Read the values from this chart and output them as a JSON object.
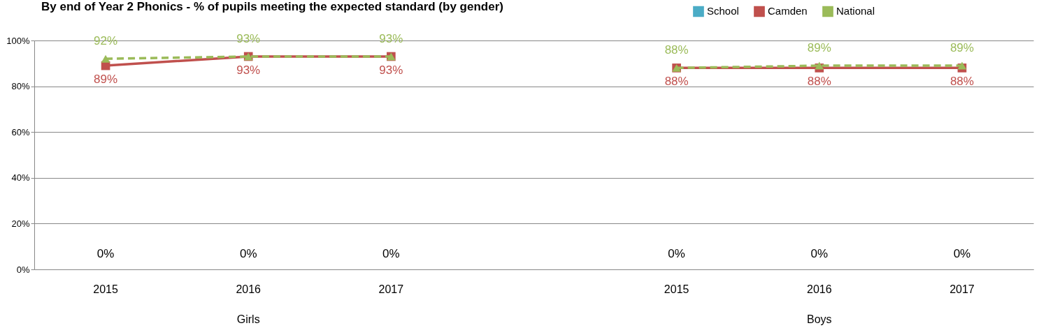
{
  "chart_data": {
    "type": "bar",
    "title": "By end of Year 2 Phonics - % of pupils meeting the expected standard (by gender)",
    "categories": [
      "2015",
      "2016",
      "2017",
      null,
      "2015",
      "2016",
      "2017"
    ],
    "annotations": [
      "Girls",
      "Boys"
    ],
    "series": [
      {
        "name": "School",
        "color": "#4bacc6",
        "values": [
          0,
          0,
          0,
          null,
          0,
          0,
          0
        ],
        "value_labels": [
          "0%",
          "0%",
          "0%",
          null,
          "0%",
          "0%",
          "0%"
        ]
      },
      {
        "name": "Camden",
        "type": "line",
        "color": "#c0504d",
        "marker": "square",
        "line_style": "solid",
        "values": [
          89,
          93,
          93,
          null,
          88,
          88,
          88
        ],
        "value_labels": [
          "89%",
          "93%",
          "93%",
          null,
          "88%",
          "88%",
          "88%"
        ]
      },
      {
        "name": "National",
        "type": "line",
        "color": "#9bbb59",
        "marker": "triangle",
        "line_style": "dashed",
        "values": [
          92,
          93,
          93,
          null,
          88,
          89,
          89
        ],
        "value_labels": [
          "92%",
          "93%",
          "93%",
          null,
          "88%",
          "89%",
          "89%"
        ]
      }
    ],
    "ylim": [
      0,
      100
    ],
    "yticks": [
      {
        "value": 0,
        "label": "0%"
      },
      {
        "value": 20,
        "label": "20%"
      },
      {
        "value": 40,
        "label": "40%"
      },
      {
        "value": 60,
        "label": "60%"
      },
      {
        "value": 80,
        "label": "80%"
      },
      {
        "value": 100,
        "label": "100%"
      }
    ],
    "grid": "y",
    "legend": "top right"
  }
}
